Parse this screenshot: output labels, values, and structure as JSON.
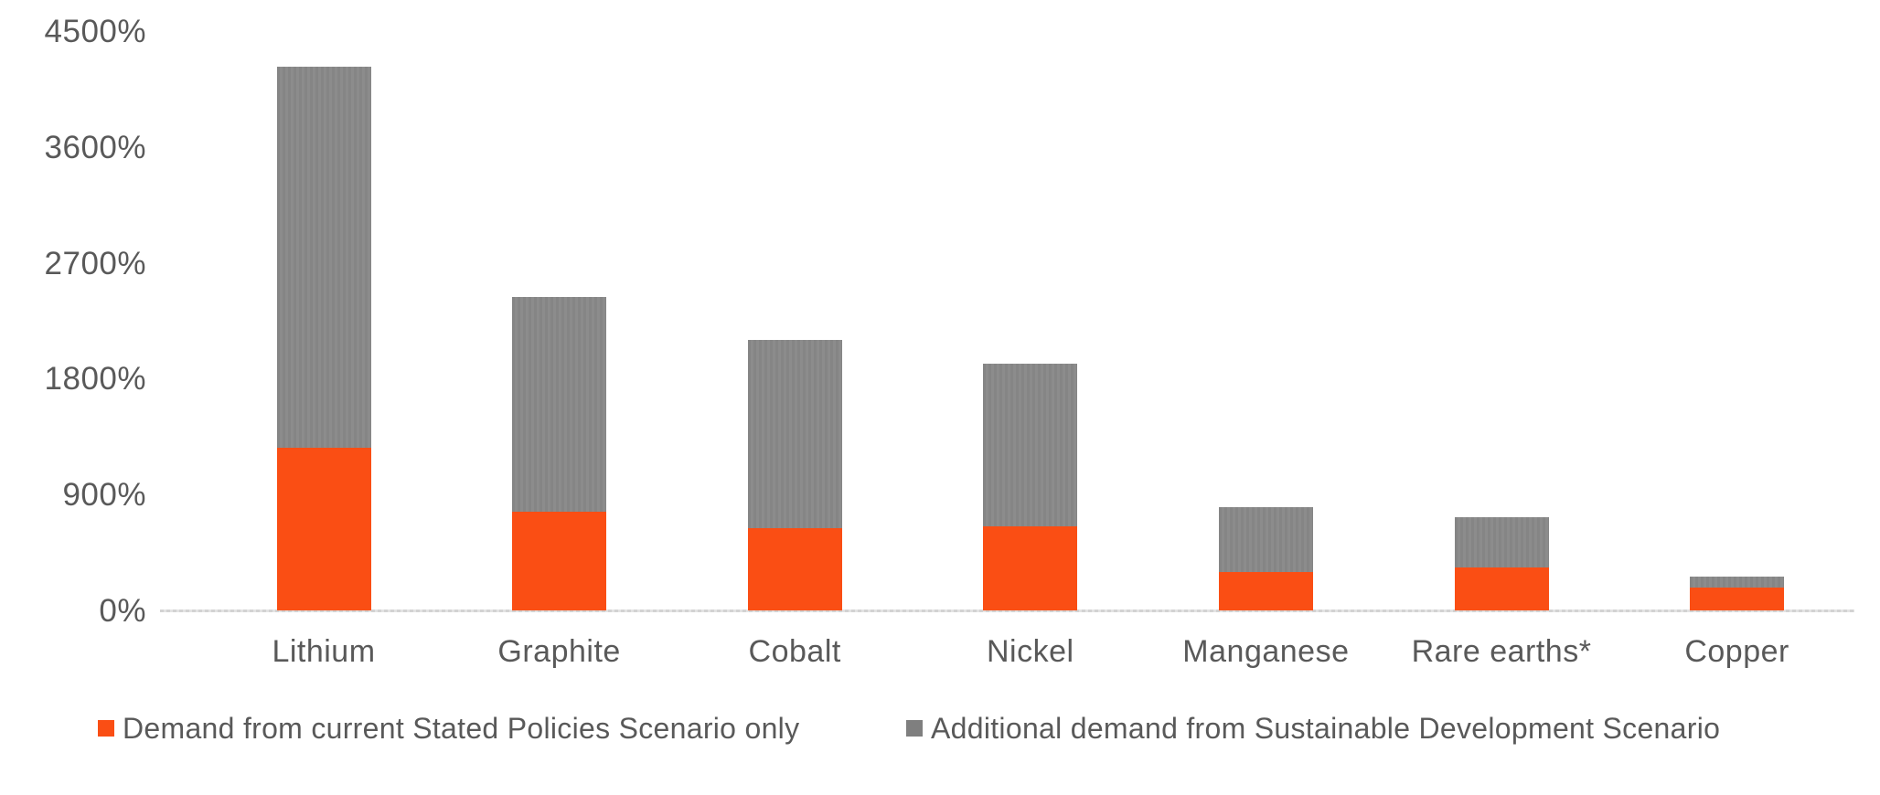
{
  "chart_data": {
    "type": "bar",
    "stacked": true,
    "title": "",
    "xlabel": "",
    "ylabel": "",
    "unit": "percent",
    "categories": [
      "Lithium",
      "Graphite",
      "Cobalt",
      "Nickel",
      "Manganese",
      "Rare earths*",
      "Copper"
    ],
    "series": [
      {
        "name": "Demand from current Stated Policies Scenario only",
        "color": "#FA4E14",
        "values": [
          1260,
          770,
          640,
          650,
          300,
          335,
          175
        ]
      },
      {
        "name": "Additional demand from Sustainable Development Scenario",
        "color": "#878787",
        "values": [
          2960,
          1665,
          1460,
          1270,
          500,
          390,
          85
        ]
      }
    ],
    "stacked_totals": [
      4220,
      2435,
      2100,
      1920,
      800,
      725,
      260
    ],
    "ylim": [
      0,
      4500
    ],
    "y_tick_values": [
      0,
      900,
      1800,
      2700,
      3600,
      4500
    ],
    "y_tick_labels": [
      "0%",
      "900%",
      "1800%",
      "2700%",
      "3600%",
      "4500%"
    ],
    "grid": false,
    "legend_position": "bottom"
  },
  "colors": {
    "steps_orange": "#FA4E14",
    "sds_gray": "#878787",
    "axis_line": "#D9D9D9",
    "text": "#595959",
    "background": "#FFFFFF"
  }
}
